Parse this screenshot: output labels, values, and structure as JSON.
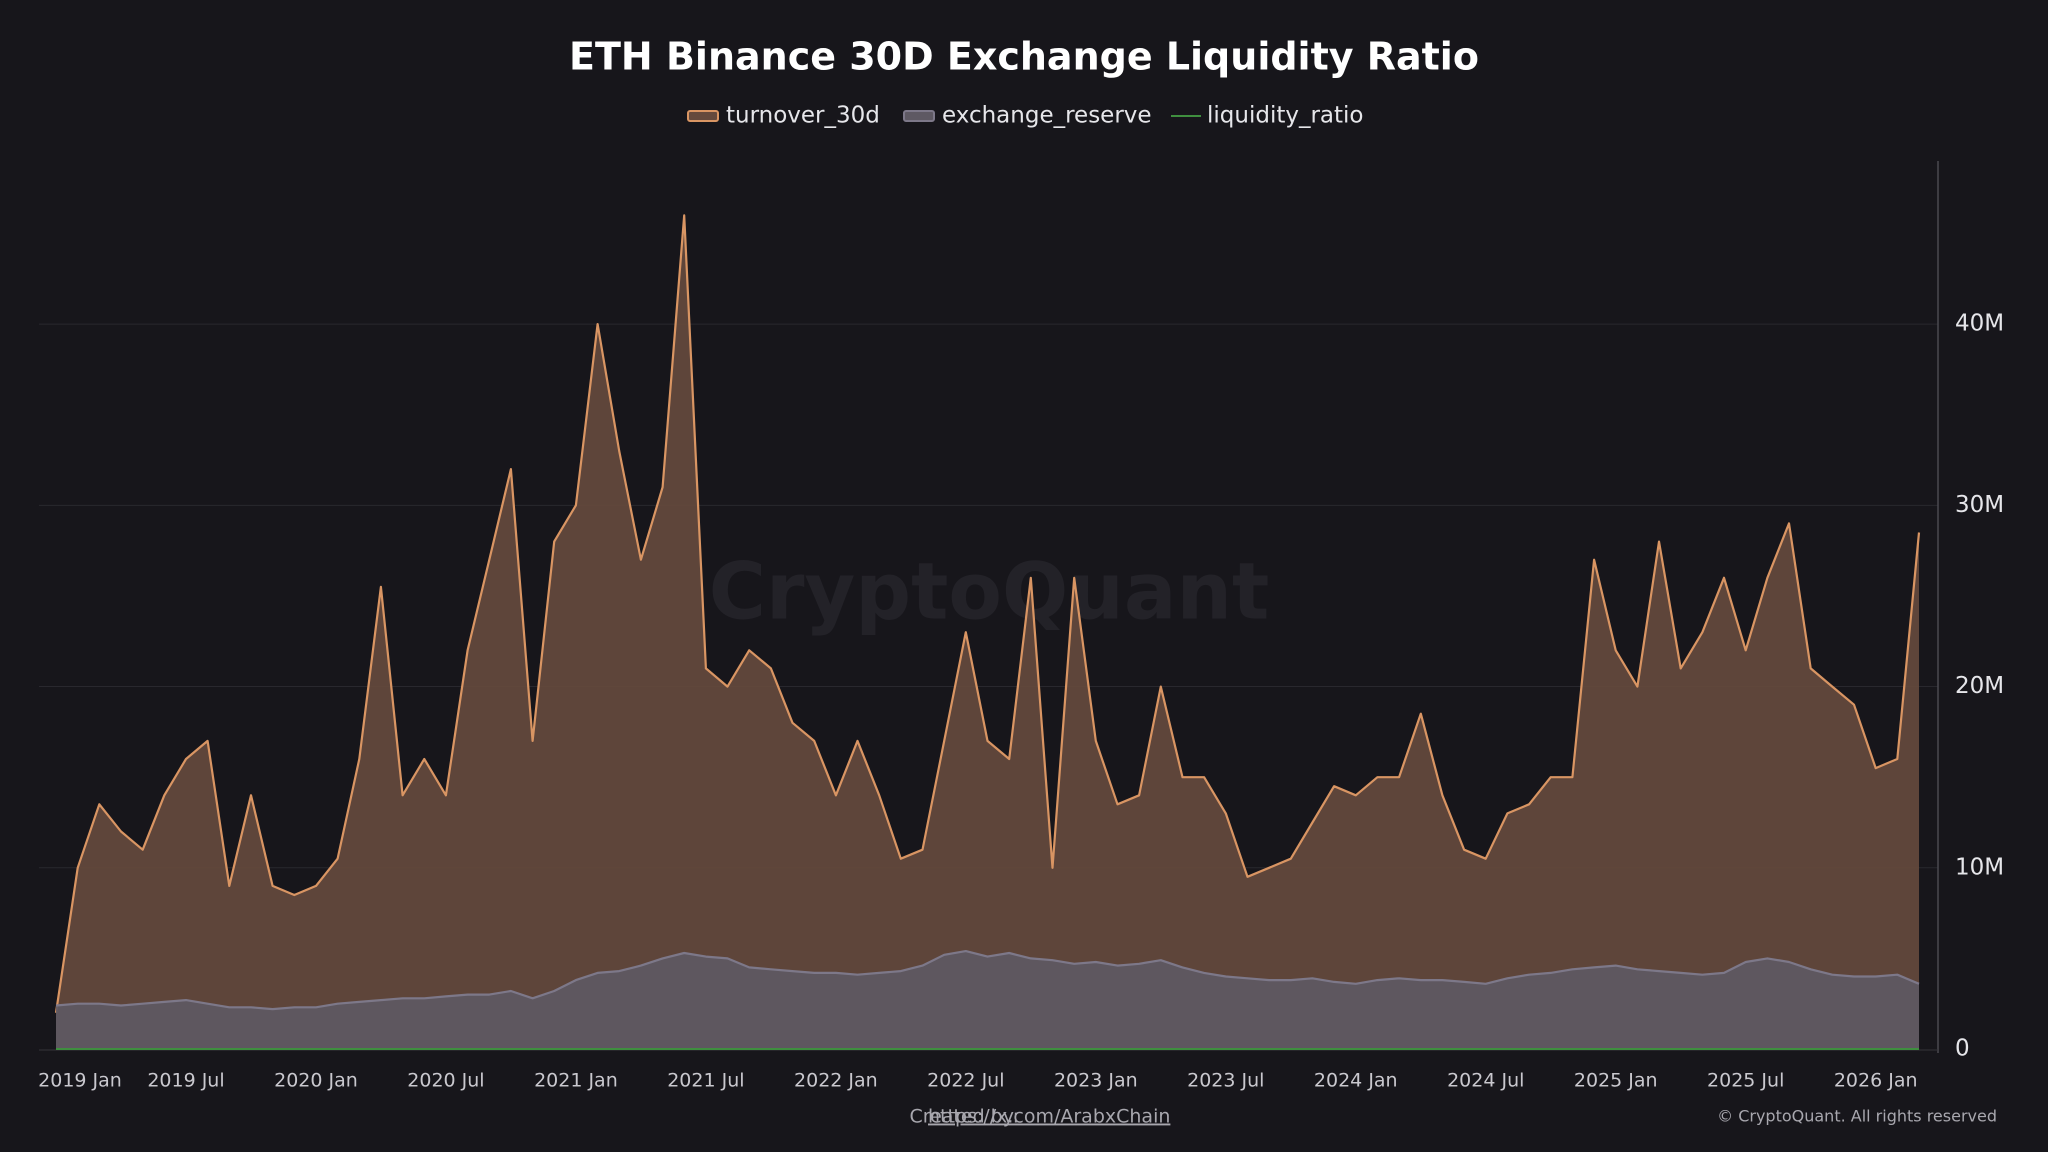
{
  "chart_data": {
    "type": "area",
    "title": "ETH Binance 30D Exchange Liquidity Ratio",
    "x": [
      "2019-01",
      "2019-02",
      "2019-03",
      "2019-04",
      "2019-05",
      "2019-06",
      "2019-07",
      "2019-08",
      "2019-09",
      "2019-10",
      "2019-11",
      "2019-12",
      "2020-01",
      "2020-02",
      "2020-03",
      "2020-04",
      "2020-05",
      "2020-06",
      "2020-07",
      "2020-08",
      "2020-09",
      "2020-10",
      "2020-11",
      "2020-12",
      "2021-01",
      "2021-02",
      "2021-03",
      "2021-04",
      "2021-05",
      "2021-06",
      "2021-07",
      "2021-08",
      "2021-09",
      "2021-10",
      "2021-11",
      "2021-12",
      "2022-01",
      "2022-02",
      "2022-03",
      "2022-04",
      "2022-05",
      "2022-06",
      "2022-07",
      "2022-08",
      "2022-09",
      "2022-10",
      "2022-11",
      "2022-12",
      "2023-01",
      "2023-02",
      "2023-03",
      "2023-04",
      "2023-05",
      "2023-06",
      "2023-07",
      "2023-08",
      "2023-09",
      "2023-10",
      "2023-11",
      "2023-12",
      "2024-01",
      "2024-02",
      "2024-03",
      "2024-04",
      "2024-05",
      "2024-06",
      "2024-07",
      "2024-08",
      "2024-09",
      "2024-10",
      "2024-11",
      "2024-12",
      "2025-01",
      "2025-02",
      "2025-03",
      "2025-04",
      "2025-05",
      "2025-06",
      "2025-07",
      "2025-08",
      "2025-09",
      "2025-10",
      "2025-11",
      "2025-12",
      "2026-01",
      "2026-02",
      "2026-03"
    ],
    "series": [
      {
        "name": "turnover_30d",
        "style": "area",
        "color": "#d99563",
        "fill": "#654a3d",
        "values": [
          2000000,
          10000000,
          13500000,
          12000000,
          11000000,
          14000000,
          16000000,
          17000000,
          9000000,
          14000000,
          9000000,
          8500000,
          9000000,
          10500000,
          16000000,
          25500000,
          14000000,
          16000000,
          14000000,
          22000000,
          27000000,
          32000000,
          17000000,
          28000000,
          30000000,
          40000000,
          33000000,
          27000000,
          31000000,
          46000000,
          21000000,
          20000000,
          22000000,
          21000000,
          18000000,
          17000000,
          14000000,
          17000000,
          14000000,
          10500000,
          11000000,
          17000000,
          23000000,
          17000000,
          16000000,
          26000000,
          10000000,
          26000000,
          17000000,
          13500000,
          14000000,
          20000000,
          15000000,
          15000000,
          13000000,
          9500000,
          10000000,
          10500000,
          12500000,
          14500000,
          14000000,
          15000000,
          15000000,
          18500000,
          14000000,
          11000000,
          10500000,
          13000000,
          13500000,
          15000000,
          15000000,
          27000000,
          22000000,
          20000000,
          28000000,
          21000000,
          23000000,
          26000000,
          22000000,
          26000000,
          29000000,
          21000000,
          20000000,
          19000000,
          15500000,
          16000000,
          28500000
        ]
      },
      {
        "name": "exchange_reserve",
        "style": "area",
        "color": "#7d7889",
        "fill": "#5e5963",
        "values": [
          2400000,
          2500000,
          2500000,
          2400000,
          2500000,
          2600000,
          2700000,
          2500000,
          2300000,
          2300000,
          2200000,
          2300000,
          2300000,
          2500000,
          2600000,
          2700000,
          2800000,
          2800000,
          2900000,
          3000000,
          3000000,
          3200000,
          2800000,
          3200000,
          3800000,
          4200000,
          4300000,
          4600000,
          5000000,
          5300000,
          5100000,
          5000000,
          4500000,
          4400000,
          4300000,
          4200000,
          4200000,
          4100000,
          4200000,
          4300000,
          4600000,
          5200000,
          5400000,
          5100000,
          5300000,
          5000000,
          4900000,
          4700000,
          4800000,
          4600000,
          4700000,
          4900000,
          4500000,
          4200000,
          4000000,
          3900000,
          3800000,
          3800000,
          3900000,
          3700000,
          3600000,
          3800000,
          3900000,
          3800000,
          3800000,
          3700000,
          3600000,
          3900000,
          4100000,
          4200000,
          4400000,
          4500000,
          4600000,
          4400000,
          4300000,
          4200000,
          4100000,
          4200000,
          4800000,
          5000000,
          4800000,
          4400000,
          4100000,
          4000000,
          4000000,
          4100000,
          3600000
        ]
      },
      {
        "name": "liquidity_ratio",
        "style": "line",
        "color": "#3f8f3f",
        "values": [
          0,
          0,
          0,
          0,
          0,
          0,
          0,
          0,
          0,
          0,
          0,
          0,
          0,
          0,
          0,
          0,
          0,
          0,
          0,
          0,
          0,
          0,
          0,
          0,
          0,
          0,
          0,
          0,
          0,
          0,
          0,
          0,
          0,
          0,
          0,
          0,
          0,
          0,
          0,
          0,
          0,
          0,
          0,
          0,
          0,
          0,
          0,
          0,
          0,
          0,
          0,
          0,
          0,
          0,
          0,
          0,
          0,
          0,
          0,
          0,
          0,
          0,
          0,
          0,
          0,
          0,
          0,
          0,
          0,
          0,
          0,
          0,
          0,
          0,
          0,
          0,
          0,
          0,
          0,
          0,
          0,
          0,
          0,
          0,
          0,
          0,
          0
        ]
      }
    ],
    "xlim": [
      "2019-01",
      "2026-03"
    ],
    "xticks": [
      {
        "value": "2019-01",
        "label": "2019 Jan"
      },
      {
        "value": "2019-07",
        "label": "2019 Jul"
      },
      {
        "value": "2020-01",
        "label": "2020 Jan"
      },
      {
        "value": "2020-07",
        "label": "2020 Jul"
      },
      {
        "value": "2021-01",
        "label": "2021 Jan"
      },
      {
        "value": "2021-07",
        "label": "2021 Jul"
      },
      {
        "value": "2022-01",
        "label": "2022 Jan"
      },
      {
        "value": "2022-07",
        "label": "2022 Jul"
      },
      {
        "value": "2023-01",
        "label": "2023 Jan"
      },
      {
        "value": "2023-07",
        "label": "2023 Jul"
      },
      {
        "value": "2024-01",
        "label": "2024 Jan"
      },
      {
        "value": "2024-07",
        "label": "2024 Jul"
      },
      {
        "value": "2025-01",
        "label": "2025 Jan"
      },
      {
        "value": "2025-07",
        "label": "2025 Jul"
      },
      {
        "value": "2026-01",
        "label": "2026 Jan"
      }
    ],
    "ylim": [
      0,
      49000000
    ],
    "yticks": [
      0,
      {
        "value": 10000000,
        "label": "10M"
      },
      {
        "value": 20000000,
        "label": "20M"
      },
      {
        "value": 30000000,
        "label": "30M"
      },
      {
        "value": 40000000,
        "label": "40M"
      }
    ],
    "grid": true
  },
  "watermark": "CryptoQuant",
  "footer": {
    "created_by": "Created by:",
    "link": "https://x.com/ArabxChain",
    "copyright": "© CryptoQuant. All rights reserved"
  }
}
